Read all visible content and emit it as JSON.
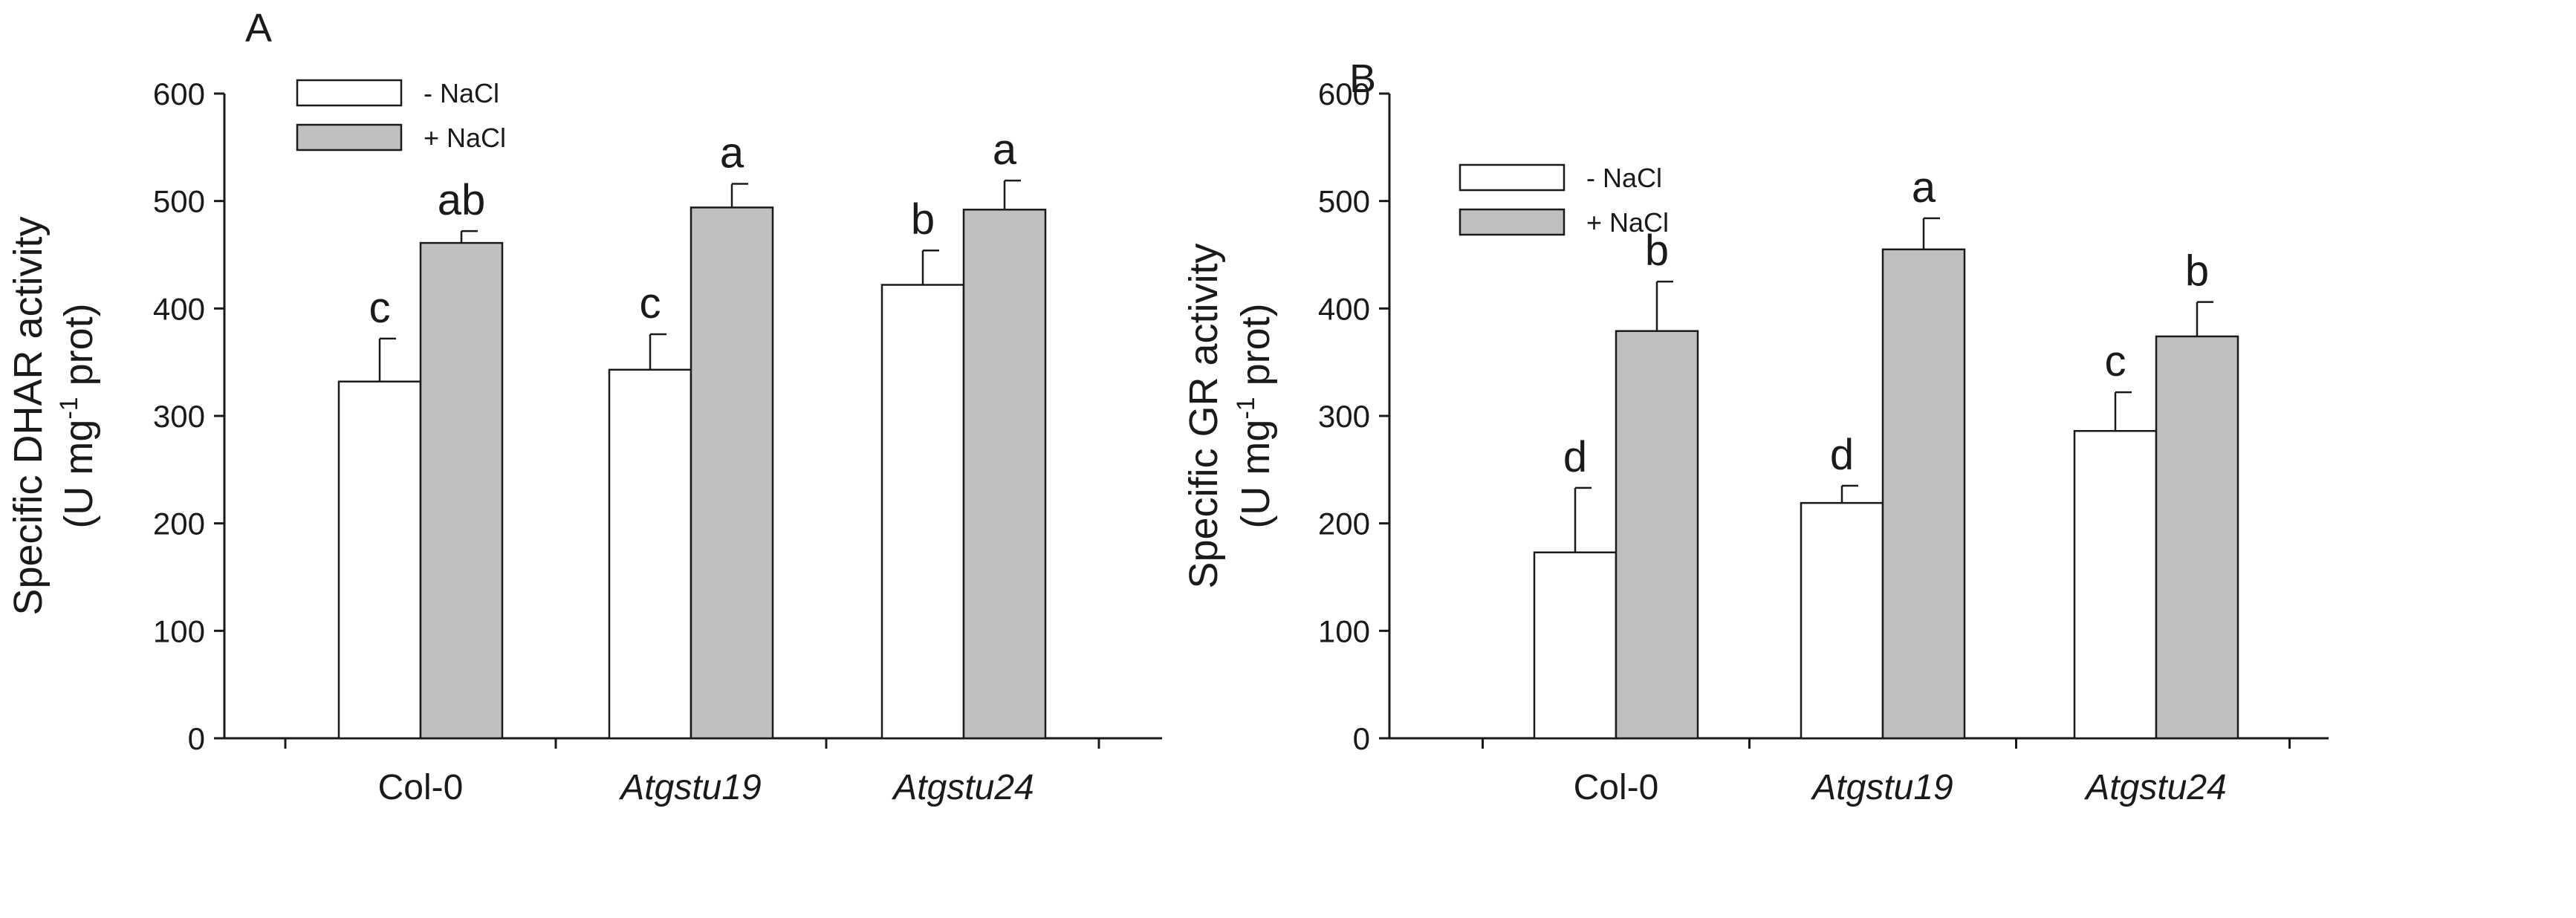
{
  "chart_data": [
    {
      "panel": "A",
      "type": "bar",
      "title": "",
      "xlabel": "",
      "ylabel_line1": "Specific DHAR activity",
      "ylabel_line2": {
        "pre": "(U mg",
        "sup": "-1",
        "post": " prot)"
      },
      "ylim": [
        0,
        600
      ],
      "yticks": [
        "0",
        "100",
        "200",
        "300",
        "400",
        "500",
        "600"
      ],
      "categories": [
        "Col-0",
        "Atgstu19",
        "Atgstu24"
      ],
      "category_italic": [
        false,
        true,
        true
      ],
      "legend_position": "top-left",
      "series": [
        {
          "name": "- NaCl",
          "color": "#ffffff",
          "values": [
            332,
            343,
            422
          ],
          "errors": [
            40,
            33,
            32
          ],
          "letters": [
            "c",
            "c",
            "b"
          ]
        },
        {
          "name": "+ NaCl",
          "color": "#c0c0c0",
          "values": [
            461,
            494,
            492
          ],
          "errors": [
            11,
            22,
            27
          ],
          "letters": [
            "ab",
            "a",
            "a"
          ]
        }
      ]
    },
    {
      "panel": "B",
      "type": "bar",
      "title": "",
      "xlabel": "",
      "ylabel_line1": "Specific GR activity",
      "ylabel_line2": {
        "pre": "(U mg",
        "sup": "-1",
        "post": " prot)"
      },
      "ylim": [
        0,
        600
      ],
      "yticks": [
        "0",
        "100",
        "200",
        "300",
        "400",
        "500",
        "600"
      ],
      "categories": [
        "Col-0",
        "Atgstu19",
        "Atgstu24"
      ],
      "category_italic": [
        false,
        true,
        true
      ],
      "legend_position": "top-left",
      "series": [
        {
          "name": "- NaCl",
          "color": "#ffffff",
          "values": [
            173,
            219,
            286
          ],
          "errors": [
            60,
            16,
            36
          ],
          "letters": [
            "d",
            "d",
            "c"
          ]
        },
        {
          "name": "+ NaCl",
          "color": "#c0c0c0",
          "values": [
            379,
            455,
            374
          ],
          "errors": [
            46,
            29,
            32
          ],
          "letters": [
            "b",
            "a",
            "b"
          ]
        }
      ]
    }
  ]
}
